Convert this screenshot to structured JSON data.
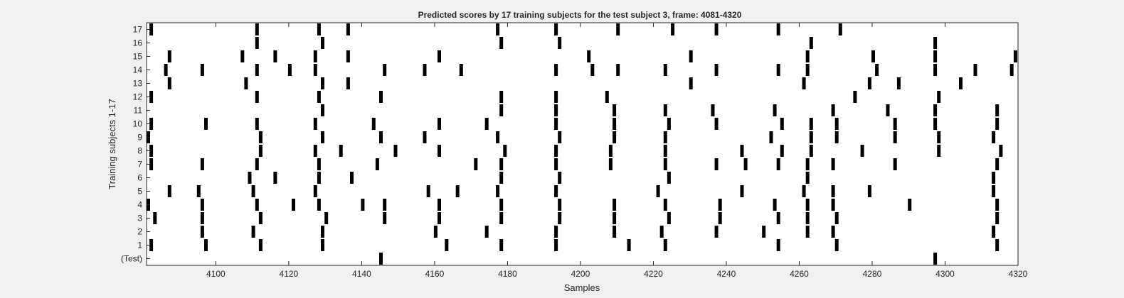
{
  "chart_data": {
    "type": "event_raster",
    "title": "Predicted scores by 17 training subjects for the test subject 3, frame: 4081-4320",
    "xlabel": "Samples",
    "ylabel": "Training subjects 1-17",
    "xlim": [
      4081,
      4320
    ],
    "xticks": [
      4100,
      4120,
      4140,
      4160,
      4180,
      4200,
      4220,
      4240,
      4260,
      4280,
      4300,
      4320
    ],
    "grid": false,
    "rows": [
      {
        "label": "(Test)",
        "events": [
          4145,
          4297
        ]
      },
      {
        "label": "1",
        "events": [
          4082,
          4097,
          4112,
          4129,
          4163,
          4178,
          4193,
          4213,
          4223,
          4254,
          4270,
          4314
        ]
      },
      {
        "label": "2",
        "events": [
          4096,
          4110,
          4129,
          4160,
          4174,
          4193,
          4209,
          4222,
          4237,
          4250,
          4262,
          4269,
          4313
        ]
      },
      {
        "label": "3",
        "events": [
          4083,
          4096,
          4112,
          4130,
          4146,
          4161,
          4178,
          4194,
          4209,
          4224,
          4238,
          4254,
          4262,
          4270,
          4314
        ]
      },
      {
        "label": "4",
        "events": [
          4081,
          4096,
          4111,
          4121,
          4128,
          4140,
          4146,
          4161,
          4178,
          4194,
          4209,
          4223,
          4238,
          4253,
          4262,
          4269,
          4290,
          4314
        ]
      },
      {
        "label": "5",
        "events": [
          4087,
          4095,
          4110,
          4127,
          4158,
          4166,
          4177,
          4193,
          4221,
          4244,
          4261,
          4269,
          4279,
          4313
        ]
      },
      {
        "label": "6",
        "events": [
          4109,
          4116,
          4128,
          4137,
          4178,
          4194,
          4224,
          4262,
          4313
        ]
      },
      {
        "label": "7",
        "events": [
          4082,
          4096,
          4111,
          4128,
          4144,
          4171,
          4178,
          4193,
          4208,
          4223,
          4237,
          4245,
          4254,
          4262,
          4269,
          4286,
          4314
        ]
      },
      {
        "label": "8",
        "events": [
          4082,
          4112,
          4127,
          4134,
          4149,
          4161,
          4179,
          4193,
          4208,
          4223,
          4244,
          4255,
          4263,
          4277,
          4298,
          4315
        ]
      },
      {
        "label": "9",
        "events": [
          4081,
          4112,
          4129,
          4145,
          4157,
          4177,
          4194,
          4209,
          4223,
          4252,
          4263,
          4270,
          4286,
          4298,
          4313
        ]
      },
      {
        "label": "10",
        "events": [
          4082,
          4097,
          4111,
          4127,
          4143,
          4161,
          4174,
          4193,
          4209,
          4224,
          4237,
          4255,
          4263,
          4270,
          4286,
          4297,
          4314
        ]
      },
      {
        "label": "11",
        "events": [
          4129,
          4178,
          4193,
          4209,
          4223,
          4236,
          4253,
          4269,
          4284,
          4297,
          4314
        ]
      },
      {
        "label": "12",
        "events": [
          4082,
          4111,
          4128,
          4145,
          4178,
          4193,
          4207,
          4275,
          4298
        ]
      },
      {
        "label": "13",
        "events": [
          4087,
          4108,
          4129,
          4136,
          4230,
          4261,
          4279,
          4287,
          4304
        ]
      },
      {
        "label": "14",
        "events": [
          4086,
          4096,
          4111,
          4120,
          4127,
          4146,
          4157,
          4167,
          4193,
          4203,
          4210,
          4223,
          4237,
          4254,
          4262,
          4281,
          4297,
          4308,
          4318
        ]
      },
      {
        "label": "15",
        "events": [
          4087,
          4107,
          4116,
          4127,
          4136,
          4161,
          4202,
          4230,
          4262,
          4280,
          4297,
          4319
        ]
      },
      {
        "label": "16",
        "events": [
          4111,
          4129,
          4178,
          4194,
          4263,
          4297
        ]
      },
      {
        "label": "17",
        "events": [
          4082,
          4111,
          4128,
          4136,
          4177,
          4193,
          4210,
          4225,
          4237,
          4254,
          4271
        ]
      }
    ]
  }
}
